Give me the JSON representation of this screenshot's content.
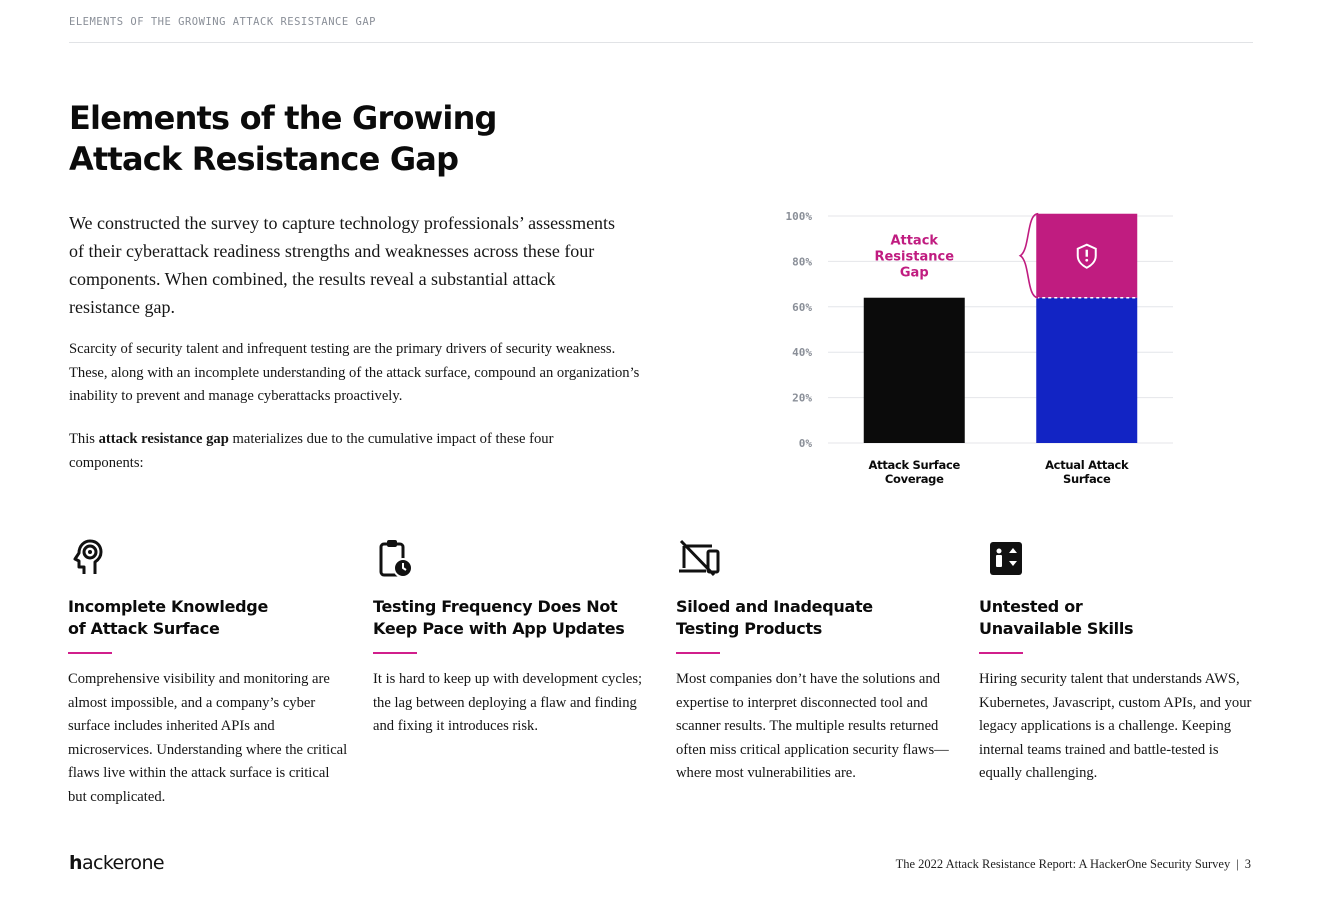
{
  "running_head": "ELEMENTS OF THE GROWING ATTACK RESISTANCE GAP",
  "title": "Elements of the Growing Attack Resistance Gap",
  "lead": "We constructed the survey to capture technology professionals’ assessments of their cyberattack readiness strengths and weaknesses across these four components. When combined, the results reveal a substantial attack resistance gap.",
  "para1": "Scarcity of security talent and infrequent testing are the primary drivers of security weakness. These, along with an incomplete understanding of the attack surface, compound an organization’s inability to prevent and manage cyberattacks proactively.",
  "para2": {
    "before": "This ",
    "bold": "attack resistance gap",
    "after": " materializes due to the cumulative impact of these four components:"
  },
  "chart_data": {
    "type": "bar",
    "categories": [
      "Attack Surface Coverage",
      "Actual Attack Surface"
    ],
    "category_lines": [
      [
        "Attack Surface",
        "Coverage"
      ],
      [
        "Actual Attack",
        "Surface"
      ]
    ],
    "series": [
      {
        "values": [
          64,
          64
        ],
        "colors": [
          "#0b0b0b",
          "#1224c4"
        ]
      },
      {
        "values": [
          0,
          37
        ],
        "colors": [
          "#0b0b0b",
          "#c01c80"
        ]
      }
    ],
    "stacked": true,
    "ylim": [
      0,
      100
    ],
    "yticks": [
      0,
      20,
      40,
      60,
      80,
      100
    ],
    "ytick_labels": [
      "0%",
      "20%",
      "40%",
      "60%",
      "80%",
      "100%"
    ],
    "grid": true,
    "annotation": {
      "lines": [
        "Attack",
        "Resistance",
        "Gap"
      ],
      "color": "#c01c80"
    },
    "xlabel": "",
    "ylabel": "",
    "title": ""
  },
  "components": [
    {
      "icon": "head-gear-icon",
      "title": [
        "Incomplete Knowledge",
        "of Attack Surface"
      ],
      "body": "Comprehensive visibility and monitoring are almost impossible, and a company’s cyber surface includes inherited APIs and microservices. Understanding where the critical flaws live within the attack surface is critical but complicated."
    },
    {
      "icon": "clipboard-clock-icon",
      "title": [
        "Testing Frequency Does Not",
        "Keep Pace with App Updates"
      ],
      "body": "It is hard to keep up with development cycles; the lag between deploying a flaw and finding and fixing it introduces risk."
    },
    {
      "icon": "devices-off-icon",
      "title": [
        "Siloed and Inadequate",
        "Testing Products"
      ],
      "body": "Most companies don’t have the solutions and expertise to interpret disconnected tool and scanner results. The multiple results returned often miss critical application security flaws—where most vulnerabilities are."
    },
    {
      "icon": "elevator-icon",
      "title": [
        "Untested or",
        "Unavailable Skills"
      ],
      "body": "Hiring security talent that understands AWS, Kubernetes, Javascript, custom APIs, and your legacy applications is a challenge. Keeping internal teams trained and battle-tested is equally challenging."
    }
  ],
  "logo": {
    "h": "h",
    "rest": "ackerone"
  },
  "footer": {
    "report": "The 2022 Attack Resistance Report: A HackerOne Security Survey",
    "separator": "|",
    "page": "3"
  },
  "colors": {
    "accent": "#d11f8c",
    "blue": "#1224c4",
    "magenta": "#c01c80",
    "black": "#0b0b0b"
  }
}
